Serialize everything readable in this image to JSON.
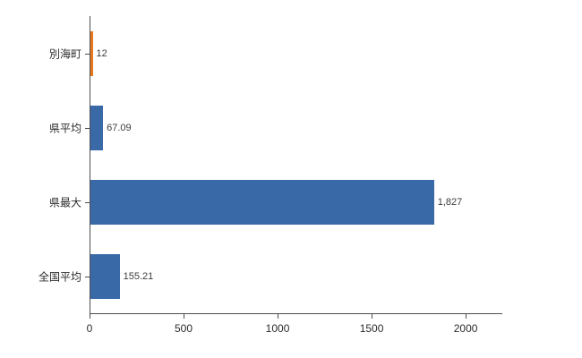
{
  "chart_data": {
    "type": "bar",
    "orientation": "horizontal",
    "title": "",
    "xlabel": "",
    "ylabel": "",
    "grid": false,
    "legend": "none",
    "categories": [
      "別海町",
      "県平均",
      "県最大",
      "全国平均"
    ],
    "values": [
      12,
      67.09,
      1827,
      155.21
    ],
    "value_labels": [
      "12",
      "67.09",
      "1,827",
      "155.21"
    ],
    "bar_colors": [
      "#e8781e",
      "#3a69a8",
      "#3a69a8",
      "#3a69a8"
    ],
    "x_ticks": [
      0,
      500,
      1000,
      1500,
      2000
    ],
    "x_tick_labels": [
      "0",
      "500",
      "1000",
      "1500",
      "2000"
    ],
    "xlim": [
      0,
      2190
    ]
  },
  "colors": {
    "bar_blue": "#3a69a8",
    "bar_orange": "#e8781e",
    "axis": "#4d4d4d",
    "text": "#2b2b2b",
    "background": "#ffffff"
  }
}
